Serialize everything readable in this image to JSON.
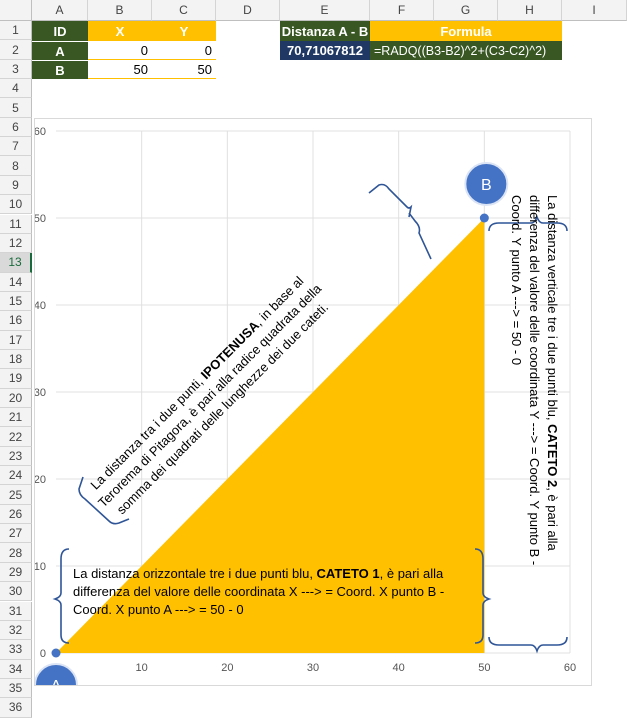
{
  "columns": [
    "A",
    "B",
    "C",
    "D",
    "E",
    "F",
    "G",
    "H",
    "I"
  ],
  "rows": [
    "1",
    "2",
    "3",
    "4",
    "5",
    "6",
    "7",
    "8",
    "9",
    "10",
    "11",
    "12",
    "13",
    "14",
    "15",
    "16",
    "17",
    "18",
    "19",
    "20",
    "21",
    "22",
    "23",
    "24",
    "25",
    "26",
    "27",
    "28",
    "29",
    "30",
    "31",
    "32",
    "33",
    "34",
    "35",
    "36"
  ],
  "table": {
    "headers": [
      "ID",
      "X",
      "Y"
    ],
    "rows": [
      {
        "id": "A",
        "x": "0",
        "y": "0"
      },
      {
        "id": "B",
        "x": "50",
        "y": "50"
      }
    ]
  },
  "distance": {
    "label": "Distanza A - B",
    "value": "70,71067812",
    "formula_label": "Formula",
    "formula": "=RADQ((B3-B2)^2+(C3-C2)^2)"
  },
  "chart_data": {
    "type": "scatter",
    "points": [
      {
        "name": "A",
        "x": 0,
        "y": 0
      },
      {
        "name": "B",
        "x": 50,
        "y": 50
      }
    ],
    "x_ticks": [
      10,
      20,
      30,
      40,
      50,
      60
    ],
    "y_ticks": [
      0,
      10,
      20,
      30,
      40,
      50,
      60
    ],
    "xlim": [
      0,
      60
    ],
    "ylim": [
      0,
      60
    ],
    "grid": true,
    "fill_color": "#ffc000",
    "marker_color": "#4472c4"
  },
  "annotations": {
    "cathetus1_pre": "La distanza orizzontale tre i due punti blu, ",
    "cathetus1_bold": "CATETO 1",
    "cathetus1_post": ", è pari alla differenza del valore delle coordinata X ---> = Coord. X punto B - Coord. X punto A ---> = 50 - 0",
    "cathetus2_pre": "La distanza verticale tre i due punti blu, ",
    "cathetus2_bold": "CATETO 2",
    "cathetus2_post": ", è pari alla differenza del valore delle coordinata Y ---> = Coord. Y punto B - Coord. Y punto A ---> = 50 - 0",
    "hyp_pre": "La distanza tra i due punti, ",
    "hyp_bold": "IPOTENUSA",
    "hyp_post": ", in base al Terorema di Pitagora, è pari alla radice quadrata della somma dei quadrati delle lunghezze dei due cateti."
  }
}
